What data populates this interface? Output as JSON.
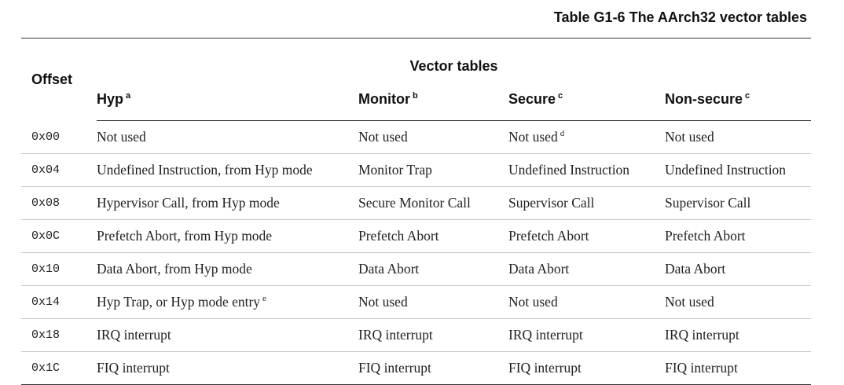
{
  "caption": "Table G1-6 The AArch32 vector tables",
  "headers": {
    "offset": "Offset",
    "group": "Vector tables",
    "hyp": "Hyp",
    "hyp_note": "a",
    "monitor": "Monitor",
    "monitor_note": "b",
    "secure": "Secure",
    "secure_note": "c",
    "nonsecure": "Non-secure",
    "nonsecure_note": "c"
  },
  "rows": [
    {
      "offset": "0x00",
      "hyp": "Not used",
      "hyp_note": "",
      "monitor": "Not used",
      "secure": "Not used",
      "secure_note": "d",
      "nonsecure": "Not used"
    },
    {
      "offset": "0x04",
      "hyp": "Undefined Instruction, from Hyp mode",
      "hyp_note": "",
      "monitor": "Monitor Trap",
      "secure": "Undefined Instruction",
      "secure_note": "",
      "nonsecure": "Undefined Instruction"
    },
    {
      "offset": "0x08",
      "hyp": "Hypervisor Call, from Hyp mode",
      "hyp_note": "",
      "monitor": "Secure Monitor Call",
      "secure": "Supervisor Call",
      "secure_note": "",
      "nonsecure": "Supervisor Call"
    },
    {
      "offset": "0x0C",
      "hyp": "Prefetch Abort, from Hyp mode",
      "hyp_note": "",
      "monitor": "Prefetch Abort",
      "secure": "Prefetch Abort",
      "secure_note": "",
      "nonsecure": "Prefetch Abort"
    },
    {
      "offset": "0x10",
      "hyp": "Data Abort, from Hyp mode",
      "hyp_note": "",
      "monitor": "Data Abort",
      "secure": "Data Abort",
      "secure_note": "",
      "nonsecure": "Data Abort"
    },
    {
      "offset": "0x14",
      "hyp": "Hyp Trap, or Hyp mode entry",
      "hyp_note": "e",
      "monitor": "Not used",
      "secure": "Not used",
      "secure_note": "",
      "nonsecure": "Not used"
    },
    {
      "offset": "0x18",
      "hyp": "IRQ interrupt",
      "hyp_note": "",
      "monitor": "IRQ interrupt",
      "secure": "IRQ interrupt",
      "secure_note": "",
      "nonsecure": "IRQ interrupt"
    },
    {
      "offset": "0x1C",
      "hyp": "FIQ interrupt",
      "hyp_note": "",
      "monitor": "FIQ interrupt",
      "secure": "FIQ interrupt",
      "secure_note": "",
      "nonsecure": "FIQ interrupt"
    }
  ]
}
